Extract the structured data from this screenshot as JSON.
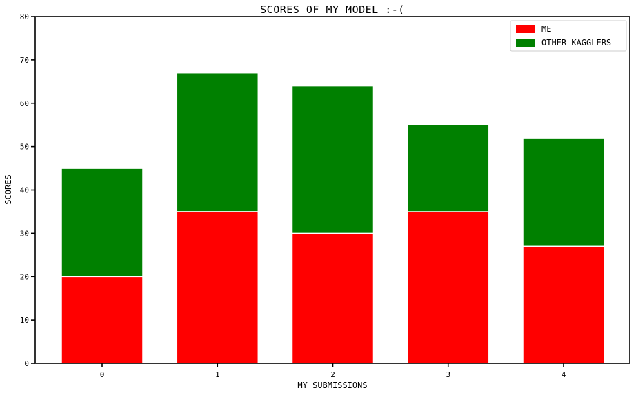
{
  "chart_data": {
    "type": "bar",
    "stacked": true,
    "title": "SCORES OF MY MODEL :-(",
    "xlabel": "MY SUBMISSIONS",
    "ylabel": "SCORES",
    "categories": [
      "0",
      "1",
      "2",
      "3",
      "4"
    ],
    "series": [
      {
        "name": "ME",
        "color": "#ff0000",
        "values": [
          20,
          35,
          30,
          35,
          27
        ]
      },
      {
        "name": "OTHER KAGGLERS",
        "color": "#008000",
        "values": [
          25,
          32,
          34,
          20,
          25
        ]
      }
    ],
    "ylim": [
      0,
      80
    ],
    "yticks": [
      "0",
      "10",
      "20",
      "30",
      "40",
      "50",
      "60",
      "70",
      "80"
    ],
    "grid": false,
    "legend_position": "top-right"
  }
}
